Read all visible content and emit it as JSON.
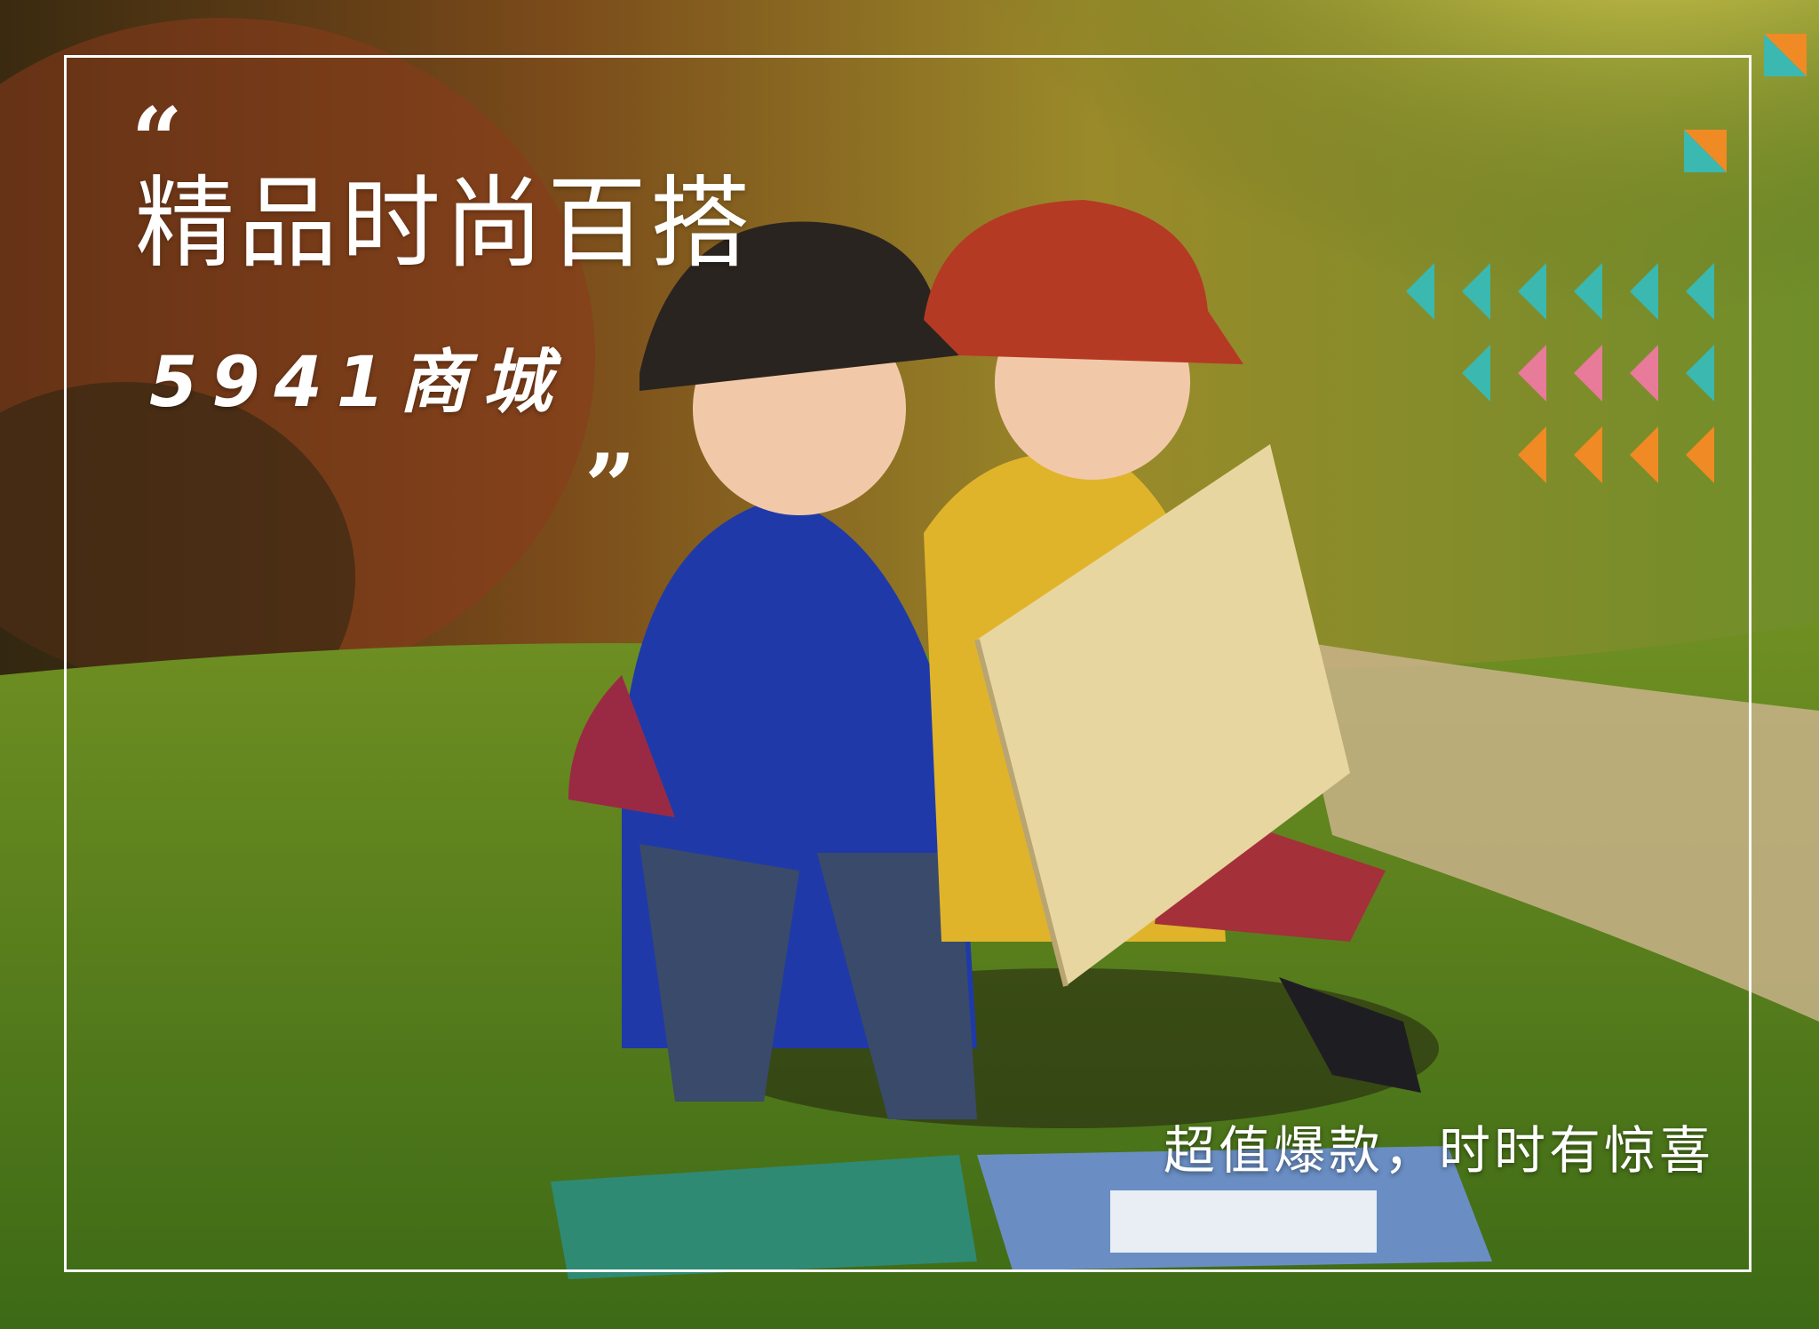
{
  "banner": {
    "quote_open": "“",
    "title": "精品时尚百搭",
    "subtitle": "5941商城",
    "quote_close": "„",
    "tagline": "超值爆款，时时有惊喜"
  },
  "colors": {
    "frame": "#ffffff",
    "teal": "#3bb8b0",
    "pink": "#e87a9a",
    "orange": "#f08a24"
  },
  "decor": {
    "corner_badges": [
      "orange-teal-square-top-right",
      "orange-teal-square-upper-right"
    ],
    "triangle_grid": [
      [
        "teal",
        "teal",
        "teal",
        "teal",
        "teal",
        "teal"
      ],
      [
        "none",
        "teal",
        "pink",
        "pink",
        "pink",
        "teal"
      ],
      [
        "none",
        "none",
        "orange",
        "orange",
        "orange",
        "orange"
      ]
    ]
  }
}
